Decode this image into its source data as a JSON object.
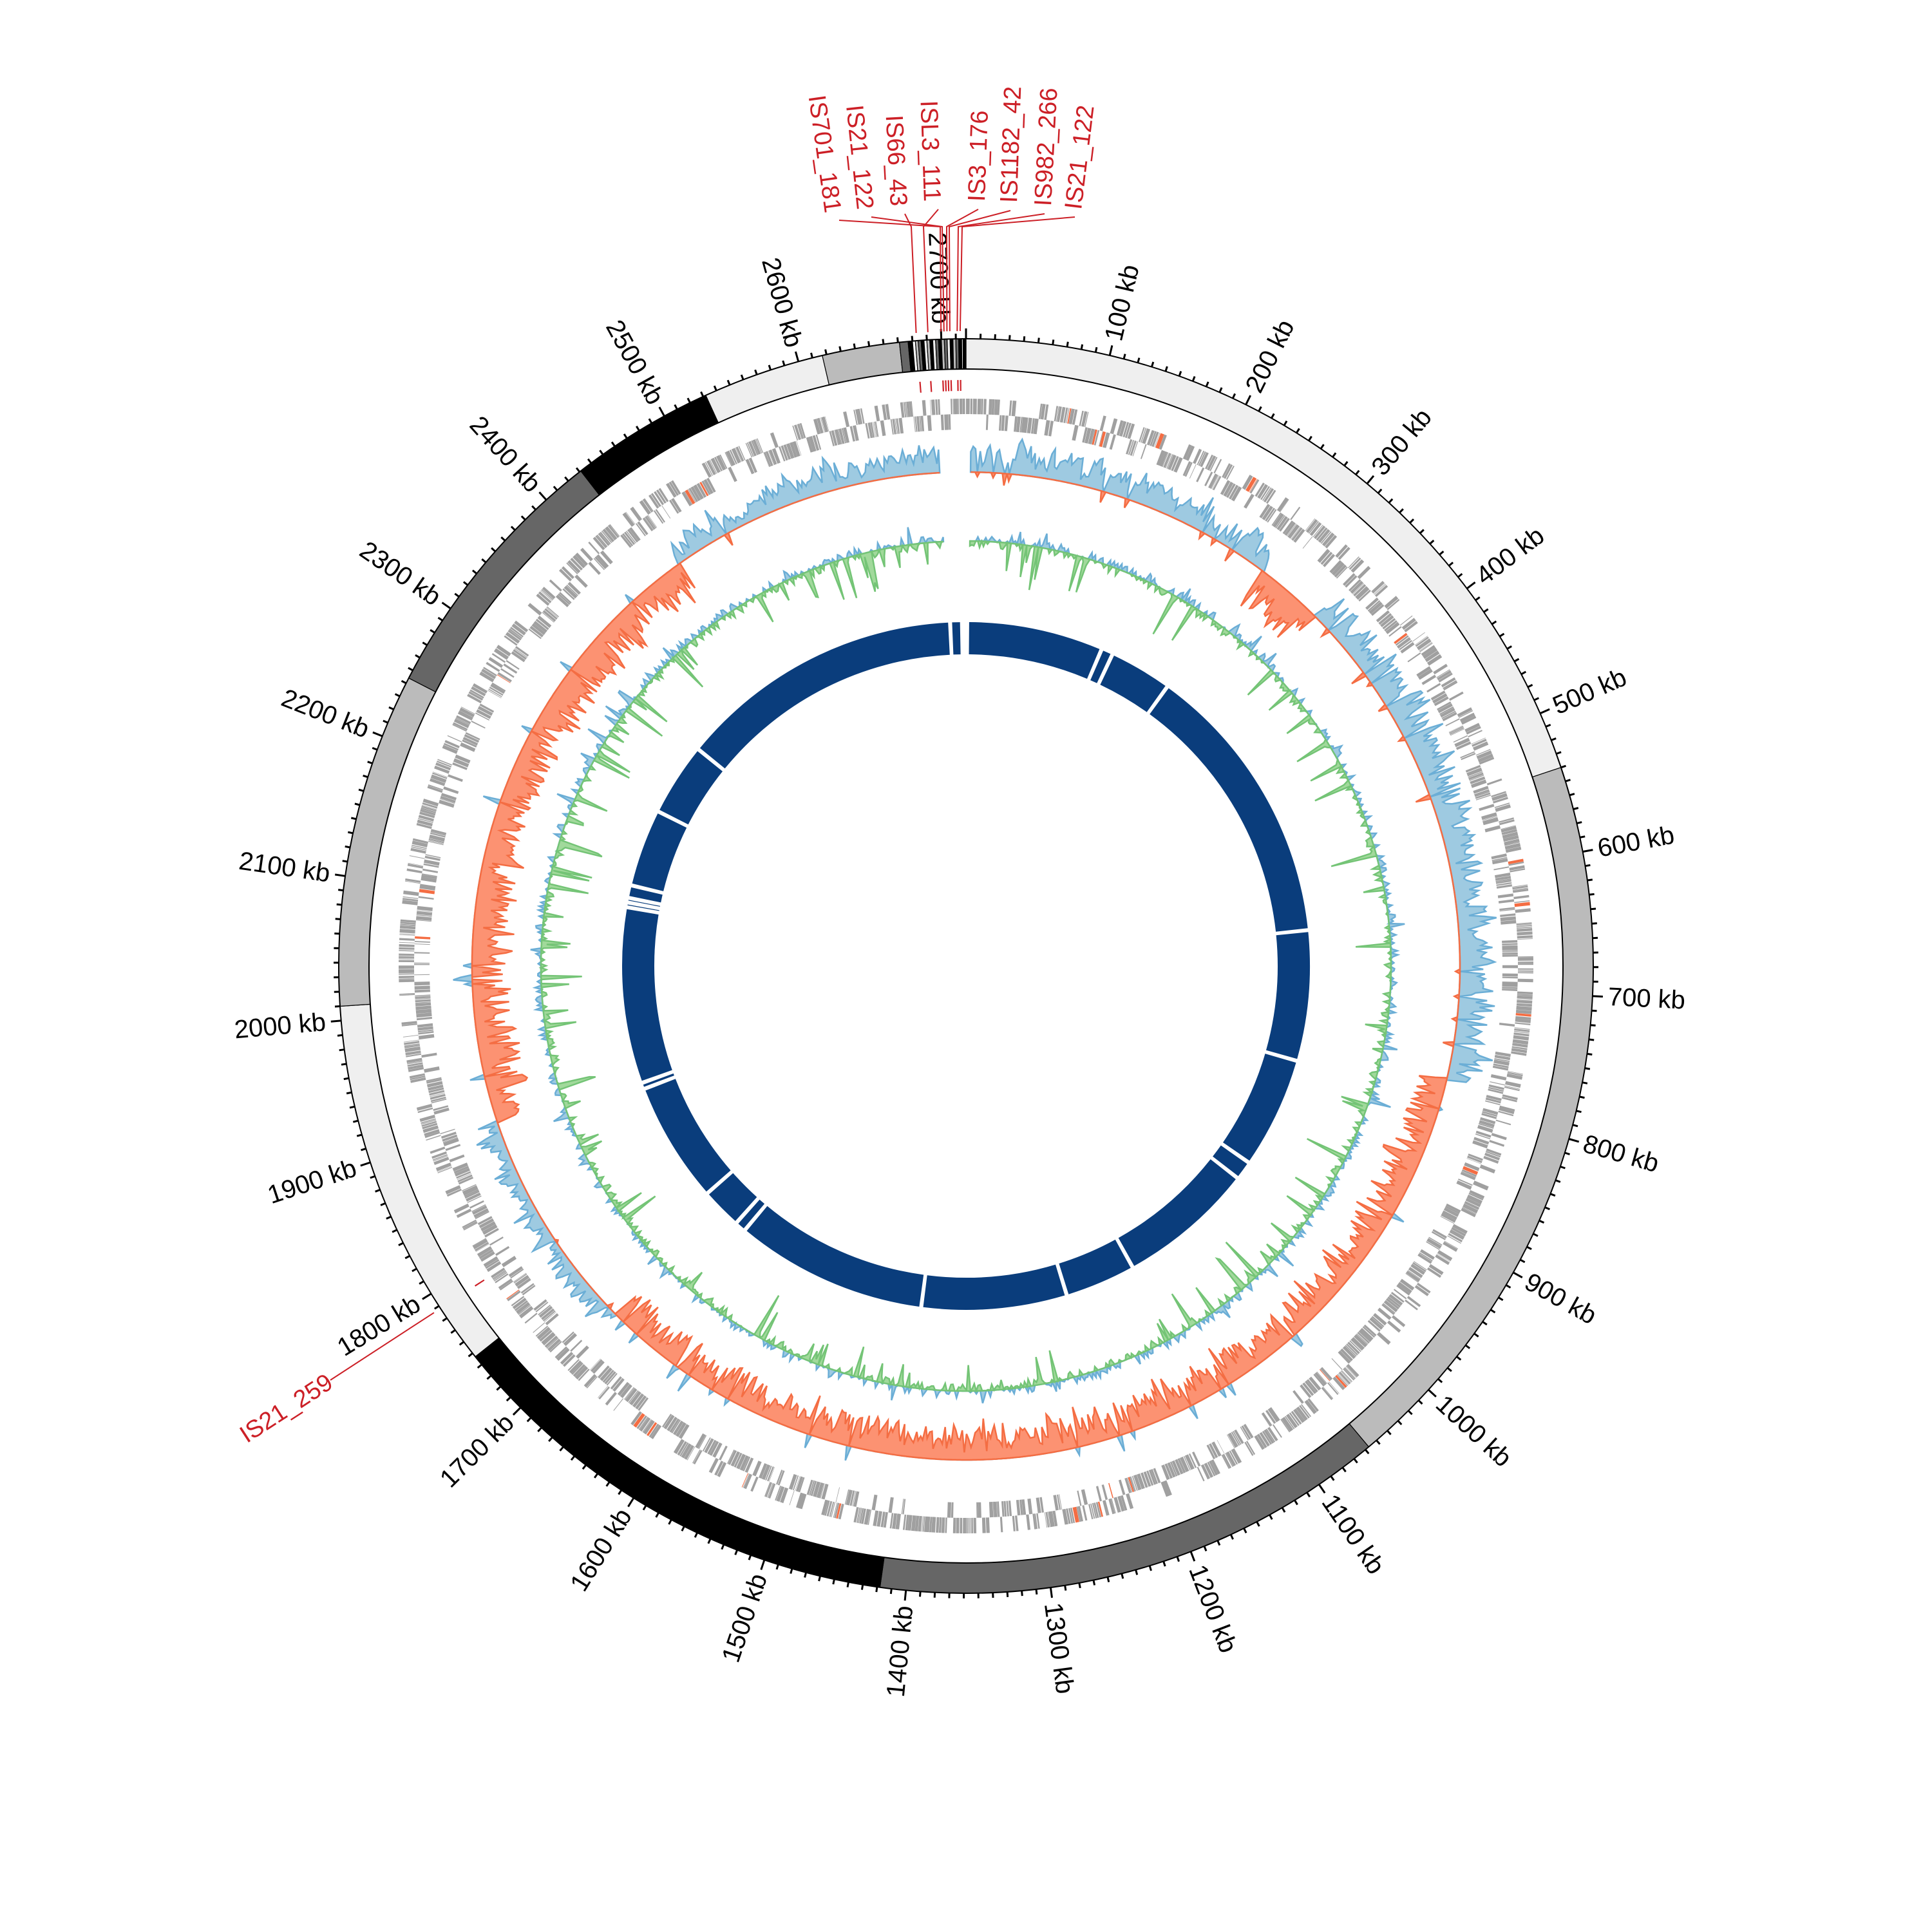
{
  "chart_data": {
    "type": "circular-genome",
    "genome_length_kb": 2717,
    "tick_interval_kb": 100,
    "minor_tick_interval_kb": 10,
    "tick_labels": [
      "100 kb",
      "200 kb",
      "300 kb",
      "400 kb",
      "500 kb",
      "600 kb",
      "700 kb",
      "800 kb",
      "900 kb",
      "1000 kb",
      "1100 kb",
      "1200 kb",
      "1300 kb",
      "1400 kb",
      "1500 kb",
      "1600 kb",
      "1700 kb",
      "1800 kb",
      "1900 kb",
      "2000 kb",
      "2100 kb",
      "2200 kb",
      "2300 kb",
      "2400 kb",
      "2500 kb",
      "2600 kb",
      "2700 kb"
    ],
    "contigs": [
      {
        "start": 0,
        "end": 540,
        "color": "#efefef"
      },
      {
        "start": 540,
        "end": 1057,
        "color": "#bbbbbb"
      },
      {
        "start": 1057,
        "end": 1418,
        "color": "#666666"
      },
      {
        "start": 1418,
        "end": 1747,
        "color": "#000000"
      },
      {
        "start": 1747,
        "end": 2010,
        "color": "#efefef"
      },
      {
        "start": 2010,
        "end": 2244,
        "color": "#bbbbbb"
      },
      {
        "start": 2244,
        "end": 2431,
        "color": "#666666"
      },
      {
        "start": 2431,
        "end": 2532,
        "color": "#000000"
      },
      {
        "start": 2532,
        "end": 2617,
        "color": "#efefef"
      },
      {
        "start": 2617,
        "end": 2671,
        "color": "#bbbbbb"
      },
      {
        "start": 2671,
        "end": 2677,
        "color": "#666666"
      },
      {
        "start": 2677,
        "end": 2680,
        "color": "#000000"
      },
      {
        "start": 2680,
        "end": 2682,
        "color": "#ffffff"
      },
      {
        "start": 2682,
        "end": 2684,
        "color": "#bbbbbb"
      },
      {
        "start": 2684,
        "end": 2686,
        "color": "#666666"
      },
      {
        "start": 2686,
        "end": 2688,
        "color": "#000000"
      },
      {
        "start": 2688,
        "end": 2690,
        "color": "#efefef"
      },
      {
        "start": 2690,
        "end": 2692,
        "color": "#bbbbbb"
      },
      {
        "start": 2692,
        "end": 2694,
        "color": "#000000"
      },
      {
        "start": 2694,
        "end": 2696,
        "color": "#efefef"
      },
      {
        "start": 2696,
        "end": 2698,
        "color": "#666666"
      },
      {
        "start": 2698,
        "end": 2700,
        "color": "#000000"
      },
      {
        "start": 2700,
        "end": 2702,
        "color": "#bbbbbb"
      },
      {
        "start": 2702,
        "end": 2704,
        "color": "#666666"
      },
      {
        "start": 2704,
        "end": 2706,
        "color": "#efefef"
      },
      {
        "start": 2706,
        "end": 2708,
        "color": "#000000"
      },
      {
        "start": 2708,
        "end": 2710,
        "color": "#bbbbbb"
      },
      {
        "start": 2710,
        "end": 2712,
        "color": "#666666"
      },
      {
        "start": 2712,
        "end": 2714,
        "color": "#000000"
      },
      {
        "start": 2714,
        "end": 2715,
        "color": "#efefef"
      },
      {
        "start": 2715,
        "end": 2717,
        "color": "#000000"
      }
    ],
    "insertion_sequences": [
      {
        "label": "IS701_181",
        "position_kb": 2700
      },
      {
        "label": "IS21_122",
        "position_kb": 2702
      },
      {
        "label": "IS66_43",
        "position_kb": 2683
      },
      {
        "label": "ISL3_111",
        "position_kb": 2691
      },
      {
        "label": "IS3_176",
        "position_kb": 2704
      },
      {
        "label": "IS1182_42",
        "position_kb": 2706
      },
      {
        "label": "IS982_266",
        "position_kb": 2711
      },
      {
        "label": "IS21_122",
        "position_kb": 2713
      },
      {
        "label": "IS21_259",
        "position_kb": 1788
      }
    ],
    "inner_ring_gaps_kb": [
      2697,
      2712,
      175,
      190,
      270,
      634,
      800,
      942,
      966,
      1140,
      1230,
      1415,
      1660,
      1674,
      1726,
      1880,
      1888,
      2112,
      2118,
      2124,
      2140,
      2239,
      2332
    ],
    "colors": {
      "is_element": "#cc1f26",
      "gene": "#a0a0a0",
      "gc_positive_fill": "#9ecae1",
      "gc_positive_line": "#6baed6",
      "gc_negative_fill": "#fc9272",
      "gc_negative_line": "#f46d43",
      "skew_negative_fill": "#a1d99b",
      "skew_negative_line": "#74c476",
      "inner_ring": "#0a3d7c"
    }
  }
}
